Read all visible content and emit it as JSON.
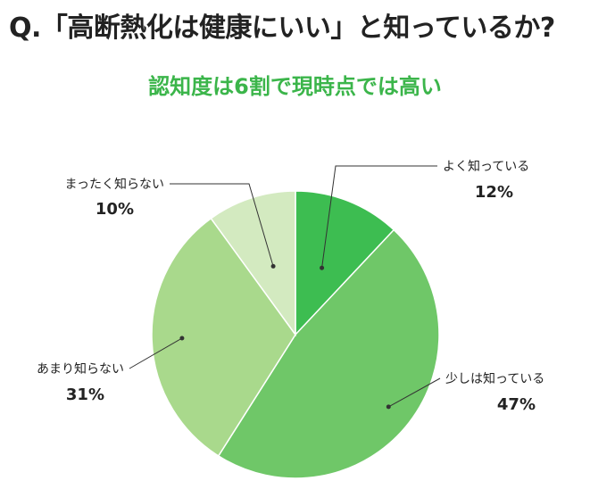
{
  "question": "Q.「高断熱化は健康にいい」と知っているか?",
  "subtitle": "認知度は6割で現時点では高い",
  "colors": {
    "subtitle": "#3bb54a",
    "text": "#222222",
    "leader_line": "#333333",
    "slice_stroke": "#ffffff"
  },
  "chart_data": {
    "type": "pie",
    "title": "",
    "start": "12 o'clock",
    "direction": "clockwise",
    "slices": [
      {
        "label": "よく知っている",
        "value": 12,
        "value_text": "12%",
        "color": "#3dbd51"
      },
      {
        "label": "少しは知っている",
        "value": 47,
        "value_text": "47%",
        "color": "#6fc768"
      },
      {
        "label": "あまり知らない",
        "value": 31,
        "value_text": "31%",
        "color": "#a9d98c"
      },
      {
        "label": "まったく知らない",
        "value": 10,
        "value_text": "10%",
        "color": "#d3eac0"
      }
    ]
  }
}
